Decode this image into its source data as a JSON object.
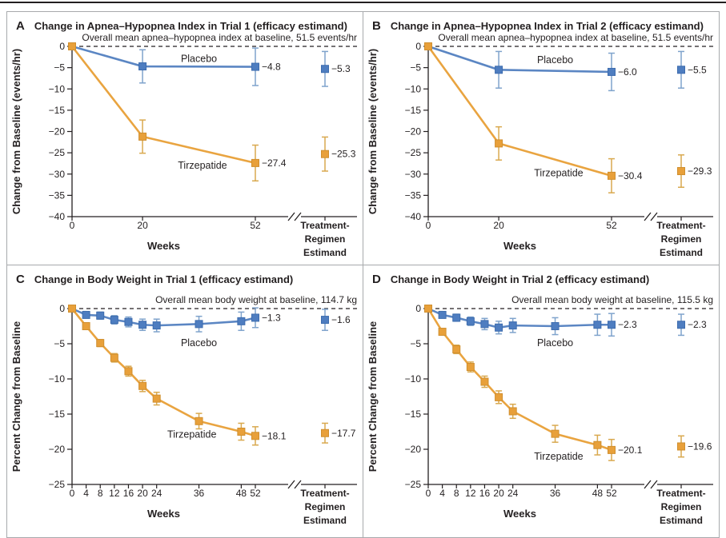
{
  "figure": {
    "background": "#ffffff",
    "rule_color": "#231f20",
    "border_color": "#a7a9ac",
    "text_color": "#231f20"
  },
  "colors": {
    "placebo_line": "#5b86c3",
    "placebo_marker": "#4e7dc0",
    "placebo_marker_edge": "#3d6cae",
    "placebo_error": "#7fa3cc",
    "tirzepatide_line": "#e9a440",
    "tirzepatide_marker": "#e8a03a",
    "tirzepatide_marker_edge": "#d08f2e",
    "tirzepatide_error": "#d9a94f"
  },
  "estimand_axis_label": [
    "Treatment-",
    "Regimen",
    "Estimand"
  ],
  "chart_data": [
    {
      "type": "line",
      "letter": "A",
      "title": "Change in Apnea–Hypopnea Index in Trial 1 (efficacy estimand)",
      "annotation": "Overall mean apnea–hypopnea index at baseline, 51.5 events/hr",
      "xlabel": "Weeks",
      "ylabel": "Change from Baseline (events/hr)",
      "ylim": [
        -40,
        0
      ],
      "ytick_step": 5,
      "xticks": [
        0,
        20,
        52
      ],
      "x": [
        0,
        20,
        52
      ],
      "series": [
        {
          "name": "Placebo",
          "key": "placebo",
          "y": [
            0,
            -4.7,
            -4.8
          ],
          "err": [
            0,
            3.9,
            4.4
          ],
          "end_label": "−4.8",
          "estimand": {
            "y": -5.3,
            "err": 4.1,
            "label": "−5.3"
          },
          "name_label": {
            "week": 36,
            "y": -2.9
          }
        },
        {
          "name": "Tirzepatide",
          "key": "tirzepatide",
          "y": [
            0,
            -21.2,
            -27.4
          ],
          "err": [
            0,
            3.9,
            4.2
          ],
          "end_label": "−27.4",
          "estimand": {
            "y": -25.3,
            "err": 4.0,
            "label": "−25.3"
          },
          "name_label": {
            "week": 37,
            "y": -28.0
          }
        }
      ]
    },
    {
      "type": "line",
      "letter": "B",
      "title": "Change in Apnea–Hypopnea Index in Trial 2 (efficacy estimand)",
      "annotation": "Overall mean apnea–hypopnea index at baseline, 51.5 events/hr",
      "xlabel": "Weeks",
      "ylabel": "Change from Baseline (events/hr)",
      "ylim": [
        -40,
        0
      ],
      "ytick_step": 5,
      "xticks": [
        0,
        20,
        52
      ],
      "x": [
        0,
        20,
        52
      ],
      "series": [
        {
          "name": "Placebo",
          "key": "placebo",
          "y": [
            0,
            -5.5,
            -6.0
          ],
          "err": [
            0,
            4.3,
            4.4
          ],
          "end_label": "−6.0",
          "estimand": {
            "y": -5.5,
            "err": 4.3,
            "label": "−5.5"
          },
          "name_label": {
            "week": 36,
            "y": -3.2
          }
        },
        {
          "name": "Tirzepatide",
          "key": "tirzepatide",
          "y": [
            0,
            -22.8,
            -30.4
          ],
          "err": [
            0,
            3.9,
            4.0
          ],
          "end_label": "−30.4",
          "estimand": {
            "y": -29.3,
            "err": 3.8,
            "label": "−29.3"
          },
          "name_label": {
            "week": 37,
            "y": -29.8
          }
        }
      ]
    },
    {
      "type": "line",
      "letter": "C",
      "title": "Change in Body Weight in Trial 1 (efficacy estimand)",
      "annotation": "Overall mean body weight at baseline, 114.7 kg",
      "xlabel": "Weeks",
      "ylabel": "Percent Change from Baseline",
      "ylim": [
        -25,
        0
      ],
      "ytick_step": 5,
      "xticks": [
        0,
        4,
        8,
        12,
        16,
        20,
        24,
        36,
        48,
        52
      ],
      "x": [
        0,
        4,
        8,
        12,
        16,
        20,
        24,
        36,
        48,
        52
      ],
      "series": [
        {
          "name": "Placebo",
          "key": "placebo",
          "y": [
            0,
            -0.9,
            -1.0,
            -1.6,
            -1.9,
            -2.3,
            -2.4,
            -2.2,
            -1.8,
            -1.3
          ],
          "err": [
            0,
            0.4,
            0.5,
            0.6,
            0.7,
            0.8,
            0.9,
            1.1,
            1.3,
            1.4
          ],
          "end_label": "−1.3",
          "estimand": {
            "y": -1.6,
            "err": 1.5,
            "label": "−1.6"
          },
          "name_label": {
            "week": 36,
            "y": -4.9
          }
        },
        {
          "name": "Tirzepatide",
          "key": "tirzepatide",
          "y": [
            0,
            -2.5,
            -4.9,
            -7.0,
            -8.9,
            -11.0,
            -12.8,
            -16.0,
            -17.5,
            -18.1
          ],
          "err": [
            0,
            0.4,
            0.5,
            0.6,
            0.7,
            0.8,
            0.9,
            1.1,
            1.2,
            1.3
          ],
          "end_label": "−18.1",
          "estimand": {
            "y": -17.7,
            "err": 1.4,
            "label": "−17.7"
          },
          "name_label": {
            "week": 34,
            "y": -17.9
          }
        }
      ]
    },
    {
      "type": "line",
      "letter": "D",
      "title": "Change in Body Weight in Trial 2 (efficacy estimand)",
      "annotation": "Overall mean body weight at baseline, 115.5 kg",
      "xlabel": "Weeks",
      "ylabel": "Percent Change from Baseline",
      "ylim": [
        -25,
        0
      ],
      "ytick_step": 5,
      "xticks": [
        0,
        4,
        8,
        12,
        16,
        20,
        24,
        36,
        48,
        52
      ],
      "x": [
        0,
        4,
        8,
        12,
        16,
        20,
        24,
        36,
        48,
        52
      ],
      "series": [
        {
          "name": "Placebo",
          "key": "placebo",
          "y": [
            0,
            -0.9,
            -1.3,
            -1.8,
            -2.2,
            -2.7,
            -2.4,
            -2.5,
            -2.3,
            -2.3
          ],
          "err": [
            0,
            0.4,
            0.5,
            0.6,
            0.8,
            0.9,
            1.0,
            1.2,
            1.5,
            1.6
          ],
          "end_label": "−2.3",
          "estimand": {
            "y": -2.3,
            "err": 1.5,
            "label": "−2.3"
          },
          "name_label": {
            "week": 36,
            "y": -4.9
          }
        },
        {
          "name": "Tirzepatide",
          "key": "tirzepatide",
          "y": [
            0,
            -3.3,
            -5.8,
            -8.3,
            -10.4,
            -12.6,
            -14.6,
            -17.8,
            -19.4,
            -20.1
          ],
          "err": [
            0,
            0.4,
            0.6,
            0.7,
            0.8,
            0.9,
            1.0,
            1.2,
            1.4,
            1.5
          ],
          "end_label": "−20.1",
          "estimand": {
            "y": -19.6,
            "err": 1.5,
            "label": "−19.6"
          },
          "name_label": {
            "week": 37,
            "y": -21.0
          }
        }
      ]
    }
  ]
}
